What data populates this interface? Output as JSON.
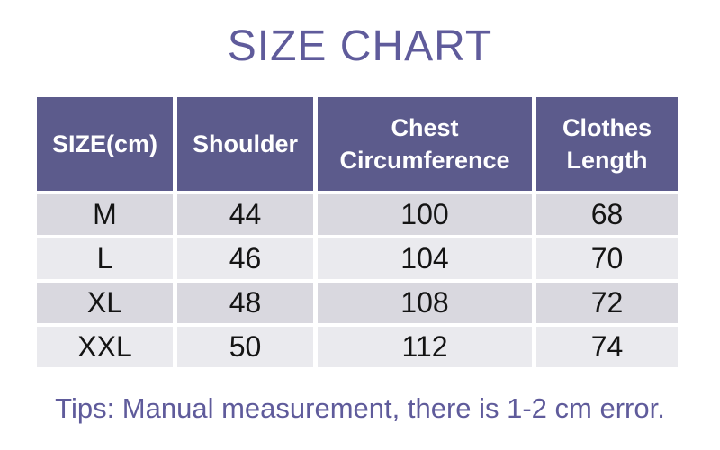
{
  "page": {
    "title": "SIZE CHART",
    "tips": "Tips: Manual measurement, there is 1-2 cm error."
  },
  "table": {
    "headers": [
      "SIZE(cm)",
      "Shoulder",
      "Chest\nCircumference",
      "Clothes\nLength"
    ],
    "rows": [
      {
        "size": "M",
        "shoulder": "44",
        "chest": "100",
        "length": "68"
      },
      {
        "size": "L",
        "shoulder": "46",
        "chest": "104",
        "length": "70"
      },
      {
        "size": "XL",
        "shoulder": "48",
        "chest": "108",
        "length": "72"
      },
      {
        "size": "XXL",
        "shoulder": "50",
        "chest": "112",
        "length": "74"
      }
    ]
  },
  "colors": {
    "accent_purple": "#5f5b9b",
    "header_bg": "#5c5b8c",
    "header_text": "#ffffff",
    "row_dark": "#d9d8df",
    "row_light": "#eaeaee",
    "data_text": "#141414",
    "background": "#ffffff"
  },
  "chart_data": {
    "type": "table",
    "title": "SIZE CHART",
    "unit": "cm",
    "columns": [
      "SIZE(cm)",
      "Shoulder",
      "Chest Circumference",
      "Clothes Length"
    ],
    "rows": [
      [
        "M",
        44,
        100,
        68
      ],
      [
        "L",
        46,
        104,
        70
      ],
      [
        "XL",
        48,
        108,
        72
      ],
      [
        "XXL",
        50,
        112,
        74
      ]
    ],
    "footnote": "Tips: Manual measurement, there is 1-2 cm error."
  }
}
